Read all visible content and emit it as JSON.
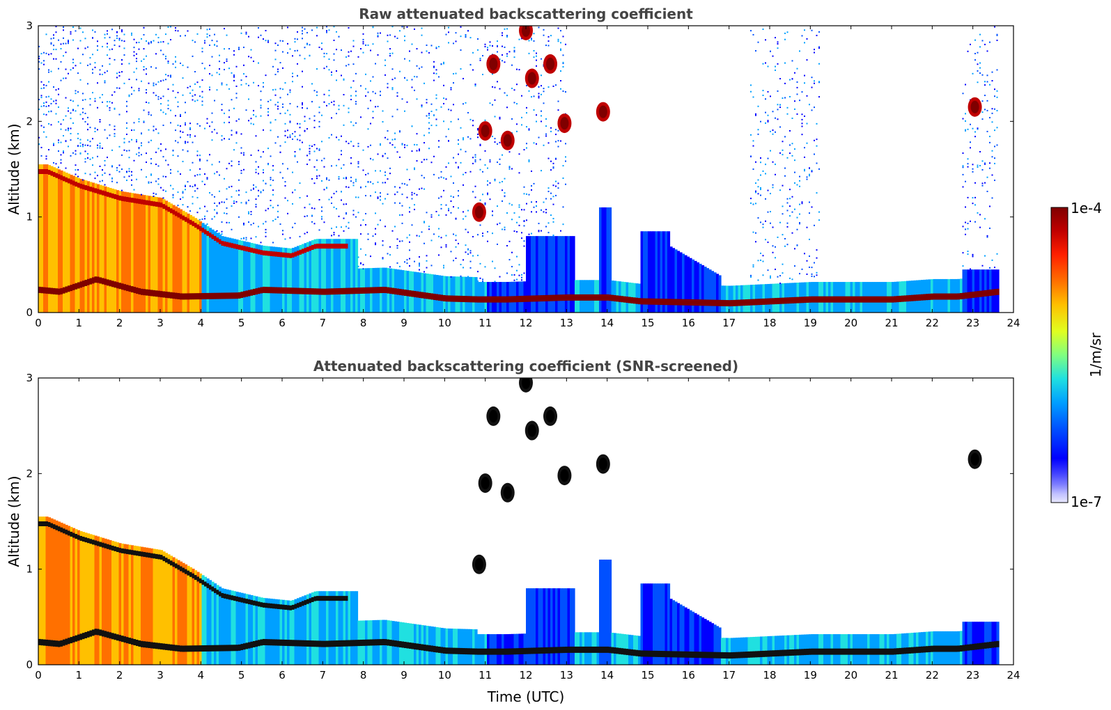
{
  "chart_data": [
    {
      "type": "heatmap",
      "title": "Raw attenuated backscattering coefficient",
      "xlabel": "",
      "ylabel": "Altitude (km)",
      "xlim": [
        0,
        24
      ],
      "ylim": [
        0,
        3
      ],
      "xticks": [
        "0",
        "1",
        "2",
        "3",
        "4",
        "5",
        "6",
        "7",
        "8",
        "9",
        "10",
        "11",
        "12",
        "13",
        "14",
        "15",
        "16",
        "17",
        "18",
        "19",
        "20",
        "21",
        "22",
        "23",
        "24"
      ],
      "yticks": [
        "0",
        "1",
        "2",
        "3"
      ],
      "colormap": "jet",
      "screened": false,
      "layers": [
        {
          "name": "boundary layer top",
          "points": [
            [
              0,
              0.22
            ],
            [
              0.5,
              0.2
            ],
            [
              1.4,
              0.33
            ],
            [
              2.5,
              0.2
            ],
            [
              3.5,
              0.15
            ],
            [
              4.9,
              0.16
            ],
            [
              5.5,
              0.22
            ],
            [
              7,
              0.2
            ],
            [
              8.5,
              0.22
            ],
            [
              10,
              0.13
            ],
            [
              10.8,
              0.12
            ],
            [
              11.5,
              0.12
            ],
            [
              13,
              0.14
            ],
            [
              14,
              0.14
            ],
            [
              14.8,
              0.1
            ],
            [
              17,
              0.08
            ],
            [
              18,
              0.1
            ],
            [
              19,
              0.12
            ],
            [
              20,
              0.12
            ],
            [
              21,
              0.12
            ],
            [
              22,
              0.15
            ],
            [
              22.6,
              0.15
            ],
            [
              23.6,
              0.2
            ]
          ]
        },
        {
          "name": "residual layer",
          "points": [
            [
              0.2,
              1.5
            ],
            [
              1,
              1.35
            ],
            [
              2,
              1.22
            ],
            [
              3,
              1.15
            ],
            [
              3.8,
              0.95
            ],
            [
              4.5,
              0.75
            ],
            [
              5.5,
              0.65
            ],
            [
              6.2,
              0.62
            ],
            [
              6.8,
              0.72
            ],
            [
              7.6,
              0.72
            ]
          ]
        }
      ],
      "clouds": [
        {
          "t": 11.0,
          "z": 1.9
        },
        {
          "t": 11.55,
          "z": 1.8
        },
        {
          "t": 12.15,
          "z": 2.45
        },
        {
          "t": 12.6,
          "z": 2.6
        },
        {
          "t": 12.95,
          "z": 1.98
        },
        {
          "t": 13.9,
          "z": 2.1
        },
        {
          "t": 10.85,
          "z": 1.05
        },
        {
          "t": 23.05,
          "z": 2.15
        },
        {
          "t": 11.2,
          "z": 2.6
        },
        {
          "t": 12.0,
          "z": 2.95
        }
      ]
    },
    {
      "type": "heatmap",
      "title": "Attenuated backscattering coefficient (SNR-screened)",
      "xlabel": "Time (UTC)",
      "ylabel": "Altitude (km)",
      "xlim": [
        0,
        24
      ],
      "ylim": [
        0,
        3
      ],
      "xticks": [
        "0",
        "1",
        "2",
        "3",
        "4",
        "5",
        "6",
        "7",
        "8",
        "9",
        "10",
        "11",
        "12",
        "13",
        "14",
        "15",
        "16",
        "17",
        "18",
        "19",
        "20",
        "21",
        "22",
        "23",
        "24"
      ],
      "yticks": [
        "0",
        "1",
        "2",
        "3"
      ],
      "colormap": "jet",
      "screened": true
    }
  ],
  "colorbar": {
    "label": "1/m/sr",
    "top_label": "1e-4",
    "bottom_label": "1e-7",
    "colors": [
      "#7f0000",
      "#c00000",
      "#ff2000",
      "#ff7000",
      "#ffc000",
      "#e0ff20",
      "#80ff80",
      "#20e0e0",
      "#00a0ff",
      "#0050ff",
      "#0000ff",
      "#4040ff",
      "#8080ff",
      "#c0c0ff",
      "#e8e8ff"
    ]
  }
}
